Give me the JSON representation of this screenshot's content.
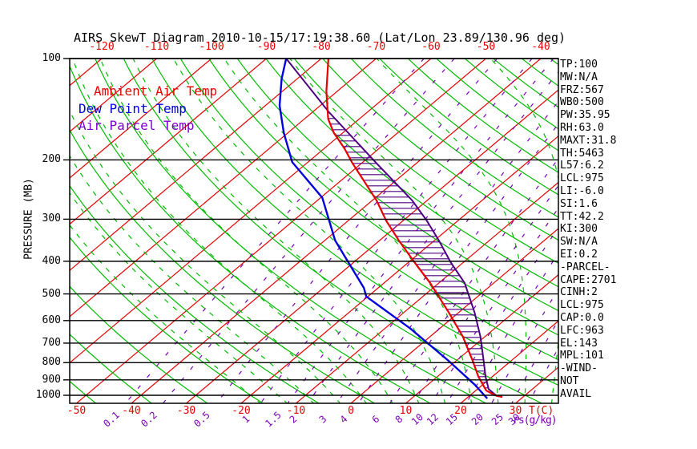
{
  "title": "AIRS SkewT Diagram 2010-10-15/17:19:38.60 (Lat/Lon 23.89/130.96 deg)",
  "legend": {
    "ambient": "Ambient Air Temp",
    "dewpoint": "Dew Point Temp",
    "parcel": "Air Parcel Temp"
  },
  "axes": {
    "pressure_label": "PRESSURE (MB)",
    "pressure_ticks": [
      100,
      200,
      300,
      400,
      500,
      600,
      700,
      800,
      900,
      1000
    ],
    "top_temp_ticks": [
      -120,
      -110,
      -100,
      -90,
      -80,
      -70,
      -60,
      -50,
      -40
    ],
    "bottom_temp_ticks": [
      -50,
      -40,
      -30,
      -20,
      -10,
      0,
      10,
      20,
      30
    ],
    "temp_unit": "T(C)",
    "mixing_unit": "rs(g/kg)",
    "mixing_ticks": [
      0.1,
      0.2,
      0.5,
      1,
      1.5,
      2,
      3,
      4,
      6,
      8,
      10,
      12,
      15,
      20,
      25,
      30
    ]
  },
  "panel": {
    "lines": [
      "TP:100",
      "MW:N/A",
      "FRZ:567",
      "WB0:500",
      "PW:35.95",
      "RH:63.0",
      "MAXT:31.8",
      "TH:5463",
      "L57:6.2",
      "LCL:975",
      "LI:-6.0",
      "SI:1.6",
      "TT:42.2",
      "KI:300",
      "SW:N/A",
      "EI:0.2",
      "-PARCEL-",
      "CAPE:2701",
      "CINH:2",
      "LCL:975",
      "CAP:0.0",
      "LFC:963",
      "EL:143",
      "MPL:101",
      "-WIND-",
      "NOT",
      "AVAIL"
    ]
  },
  "colors": {
    "isotherm": "#e80000",
    "adiabat": "#00bb00",
    "mixing": "#7a00b8",
    "pressure_line": "#000000",
    "ambient_curve": "#e80000",
    "dew_curve": "#0000dd",
    "parcel_curve": "#4e0082",
    "hatch": "#4e0082"
  },
  "chart_data": {
    "type": "line",
    "title": "AIRS SkewT Diagram 2010-10-15/17:19:38.60 (Lat/Lon 23.89/130.96 deg)",
    "xlabel": "T(C)",
    "ylabel": "PRESSURE (MB)",
    "p_top": 100,
    "p_bottom_edge": 1056,
    "isotherm_step_C": 10,
    "isotherm_range_C": [
      -130,
      50
    ],
    "dry_adiabats_theta_C": [
      -50,
      -40,
      -30,
      -20,
      -10,
      0,
      10,
      20,
      30,
      40,
      50,
      60,
      70,
      80,
      90,
      100,
      110,
      120,
      130,
      140,
      150,
      160,
      170,
      180,
      190
    ],
    "moist_adiabats_start_C": [
      -20,
      -15,
      -10,
      -5,
      0,
      5,
      10,
      15,
      20,
      25,
      30,
      35,
      40
    ],
    "mixing_ratio_lines_gkg": [
      0.1,
      0.2,
      0.5,
      1,
      1.5,
      2,
      3,
      4,
      6,
      8,
      10,
      12,
      15,
      20,
      25,
      30
    ],
    "series": [
      {
        "name": "Ambient Air Temp",
        "units": [
          "hPa",
          "C"
        ],
        "points": [
          [
            100,
            -78.7
          ],
          [
            125,
            -72.0
          ],
          [
            151,
            -65.7
          ],
          [
            166,
            -61.7
          ],
          [
            185,
            -56.3
          ],
          [
            204,
            -51.8
          ],
          [
            264,
            -39.2
          ],
          [
            303,
            -33.1
          ],
          [
            347,
            -26.5
          ],
          [
            403,
            -18.9
          ],
          [
            464,
            -11.6
          ],
          [
            568,
            -1.8
          ],
          [
            670,
            6.0
          ],
          [
            790,
            13.0
          ],
          [
            881,
            17.5
          ],
          [
            968,
            21.9
          ],
          [
            1000,
            24.5
          ],
          [
            1011,
            26.2
          ]
        ]
      },
      {
        "name": "Dew Point Temp",
        "units": [
          "hPa",
          "C"
        ],
        "points": [
          [
            100,
            -86.4
          ],
          [
            115,
            -82.8
          ],
          [
            138,
            -77.4
          ],
          [
            166,
            -70.8
          ],
          [
            203,
            -62.9
          ],
          [
            259,
            -49.7
          ],
          [
            347,
            -38.1
          ],
          [
            480,
            -22.6
          ],
          [
            509,
            -20.3
          ],
          [
            634,
            -5.3
          ],
          [
            790,
            8.6
          ],
          [
            931,
            18.6
          ],
          [
            1022,
            23.8
          ]
        ]
      },
      {
        "name": "Air Parcel Temp",
        "units": [
          "hPa",
          "C"
        ],
        "points": [
          [
            100,
            -86.4
          ],
          [
            144,
            -67.1
          ],
          [
            206,
            -46.9
          ],
          [
            264,
            -32.7
          ],
          [
            303,
            -25.7
          ],
          [
            347,
            -19.2
          ],
          [
            403,
            -12.3
          ],
          [
            464,
            -5.3
          ],
          [
            568,
            2.9
          ],
          [
            670,
            9.2
          ],
          [
            790,
            15.0
          ],
          [
            881,
            18.8
          ],
          [
            958,
            22.0
          ],
          [
            1005,
            25.0
          ],
          [
            1011,
            26.2
          ]
        ]
      }
    ],
    "cape_hatch": {
      "between": [
        "Air Parcel Temp",
        "Ambient Air Temp"
      ],
      "from_p": 145,
      "to_p": 955
    }
  }
}
